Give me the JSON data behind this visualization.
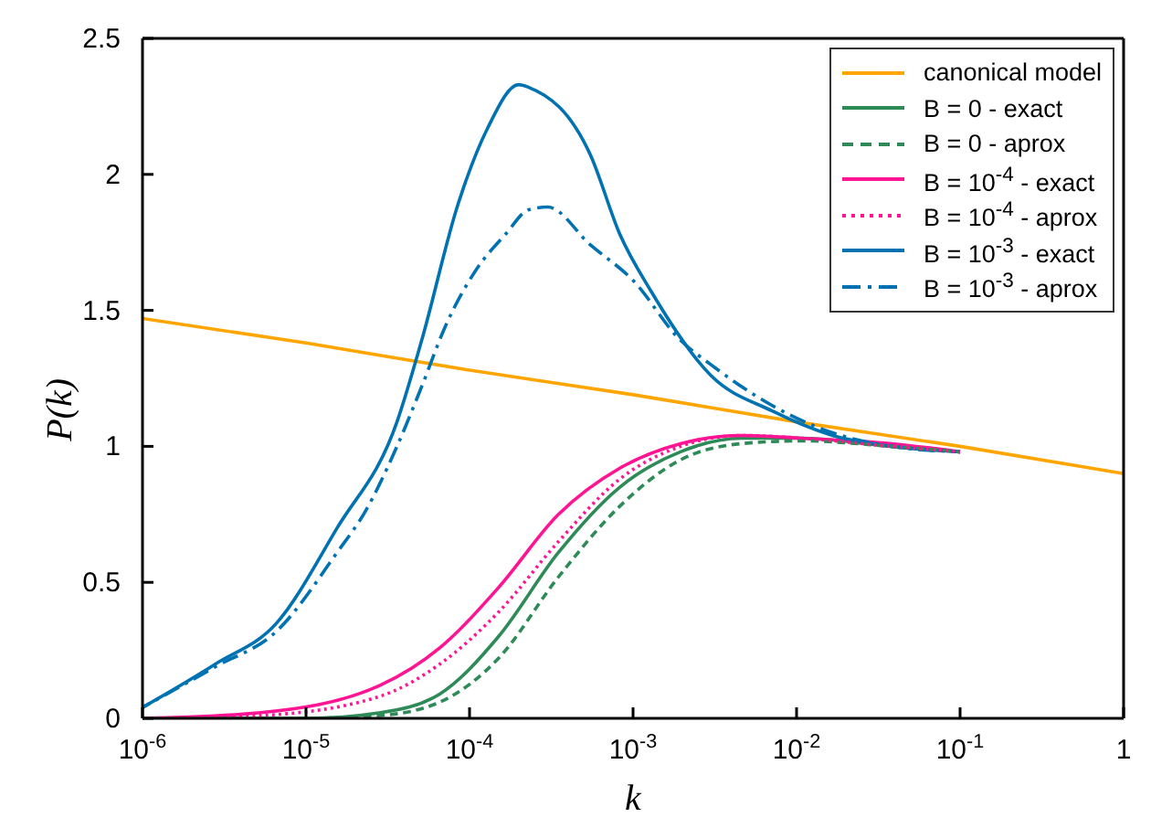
{
  "chart_data": {
    "type": "line",
    "xlabel": "k",
    "ylabel": "P(k)",
    "log": "x",
    "grid": false,
    "legend": "top right",
    "marker": "none",
    "xlim": [
      1e-06,
      1
    ],
    "ylim": [
      0,
      2.5
    ],
    "xticks": [
      {
        "value": 1e-06,
        "label": "10$^{-6}$"
      },
      {
        "value": 1e-05,
        "label": "10$^{-5}$"
      },
      {
        "value": 0.0001,
        "label": "10$^{-4}$"
      },
      {
        "value": 0.001,
        "label": "10$^{-3}$"
      },
      {
        "value": 0.01,
        "label": "10$^{-2}$"
      },
      {
        "value": 0.1,
        "label": "10$^{-1}$"
      },
      1
    ],
    "yticks": [
      0,
      {
        "value": 0.5,
        "label": "0.5"
      },
      1,
      {
        "value": 1.5,
        "label": "1.5"
      },
      2,
      {
        "value": 2.5,
        "label": "2.5"
      }
    ],
    "series": [
      {
        "name": "canonical model",
        "color": "#ffa500",
        "line_style": "solid",
        "x": [
          1e-06,
          1e-05,
          0.0001,
          0.001,
          0.01,
          0.1,
          1
        ],
        "values": [
          1.47,
          1.38,
          1.28,
          1.19,
          1.09,
          1.0,
          0.9
        ]
      },
      {
        "name": "B = 0 - exact",
        "color": "#2e8b57",
        "line_style": "solid",
        "x": [
          1e-06,
          1e-05,
          2.8e-05,
          6.6e-05,
          0.00015,
          0.00035,
          0.00083,
          0.00195,
          0.0046,
          0.0107,
          0.038,
          0.1
        ],
        "values": [
          0,
          0,
          0.02,
          0.09,
          0.3,
          0.61,
          0.85,
          0.98,
          1.03,
          1.03,
          1.0,
          0.98
        ]
      },
      {
        "name": "B = 0 - aprox",
        "color": "#2e8b57",
        "line_style": "dashed",
        "x": [
          1e-06,
          1e-05,
          2.8e-05,
          6.6e-05,
          0.00015,
          0.00035,
          0.00083,
          0.00195,
          0.0046,
          0.0107,
          0.038,
          0.1
        ],
        "values": [
          0,
          0,
          0.01,
          0.06,
          0.22,
          0.52,
          0.78,
          0.95,
          1.01,
          1.02,
          1.0,
          0.98
        ]
      },
      {
        "name": "B = 10$^{-4}$ - exact",
        "color": "#ff1493",
        "line_style": "solid",
        "x": [
          1e-06,
          5.1e-06,
          2.8e-05,
          6.6e-05,
          0.00015,
          0.00035,
          0.00083,
          0.00195,
          0.0046,
          0.0107,
          0.038,
          0.1
        ],
        "values": [
          0,
          0.02,
          0.12,
          0.26,
          0.48,
          0.75,
          0.92,
          1.01,
          1.04,
          1.03,
          1.01,
          0.98
        ]
      },
      {
        "name": "B = 10$^{-4}$ - aprox",
        "color": "#ff1493",
        "line_style": "dotted",
        "x": [
          1e-06,
          5.1e-06,
          2.8e-05,
          6.6e-05,
          0.00015,
          0.00035,
          0.00083,
          0.00195,
          0.0046,
          0.0107,
          0.038,
          0.1
        ],
        "values": [
          0,
          0.01,
          0.08,
          0.2,
          0.39,
          0.65,
          0.88,
          1.0,
          1.04,
          1.03,
          1.0,
          0.98
        ]
      },
      {
        "name": "B = 10$^{-3}$ - exact",
        "color": "#0072b2",
        "line_style": "solid",
        "x": [
          1e-06,
          2.8e-06,
          6.6e-06,
          1.55e-05,
          3.6e-05,
          5.1e-05,
          8.5e-05,
          0.000129,
          0.0002,
          0.00023,
          0.00055,
          0.00083,
          0.00129,
          0.003,
          0.0071,
          0.0166,
          0.038,
          0.1
        ],
        "values": [
          0.04,
          0.2,
          0.35,
          0.7,
          1.09,
          1.39,
          1.89,
          2.17,
          2.33,
          2.32,
          2.07,
          1.78,
          1.57,
          1.26,
          1.13,
          1.04,
          1.0,
          0.98
        ]
      },
      {
        "name": "B = 10$^{-3}$ - aprox",
        "color": "#0072b2",
        "line_style": "dashdot",
        "x": [
          1e-06,
          2.8e-06,
          6.6e-06,
          1.55e-05,
          2.3e-05,
          3.6e-05,
          5.1e-05,
          7.1e-05,
          0.00011,
          0.000166,
          0.00023,
          0.0003,
          0.00055,
          0.001,
          0.00195,
          0.003,
          0.0071,
          0.0166,
          0.038,
          0.1
        ],
        "values": [
          0.04,
          0.19,
          0.32,
          0.61,
          0.76,
          1.0,
          1.22,
          1.44,
          1.65,
          1.78,
          1.87,
          1.88,
          1.74,
          1.61,
          1.39,
          1.3,
          1.15,
          1.05,
          1.0,
          0.98
        ]
      }
    ]
  }
}
